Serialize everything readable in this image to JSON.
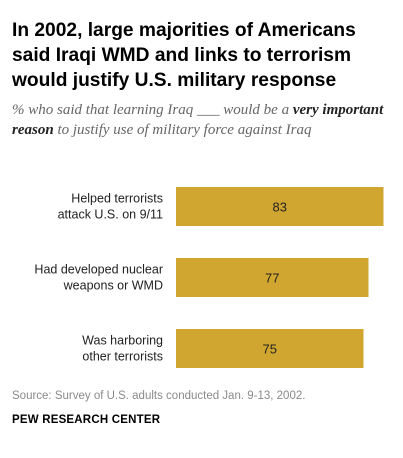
{
  "title": "In 2002, large majorities of Americans said Iraqi WMD and links to terrorism would justify U.S. military response",
  "subtitle": {
    "part1": "% who said that learning Iraq ___ would be a ",
    "emphasis": "very important reason",
    "part2": " to justify use of military force against Iraq"
  },
  "chart_data": {
    "type": "bar",
    "orientation": "horizontal",
    "categories": [
      [
        "Helped terrorists",
        "attack U.S. on 9/11"
      ],
      [
        "Had developed nuclear",
        "weapons or WMD"
      ],
      [
        "Was harboring",
        "other terrorists"
      ]
    ],
    "values": [
      83,
      77,
      75
    ],
    "value_labels": [
      "83",
      "77",
      "75"
    ],
    "xlim": [
      0,
      100
    ],
    "bar_color": "#d1a630",
    "grid": false,
    "legend": "none"
  },
  "footer": {
    "source": "Source: Survey of U.S. adults conducted Jan. 9-13, 2002.",
    "brand": "PEW RESEARCH CENTER"
  }
}
